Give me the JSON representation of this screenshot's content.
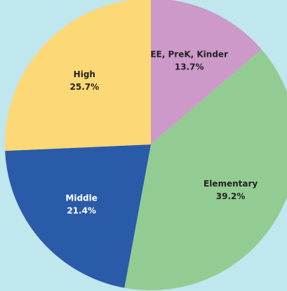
{
  "chart_data": {
    "type": "pie",
    "categories": [
      "EE, PreK, Kinder",
      "Elementary",
      "Middle",
      "High"
    ],
    "values": [
      13.7,
      39.2,
      21.4,
      25.7
    ],
    "value_labels": [
      "13.7%",
      "39.2%",
      "21.4%",
      "25.7%"
    ],
    "colors": [
      "#cc99c9",
      "#93cc93",
      "#2a5ba8",
      "#fdd876"
    ],
    "label_colors": [
      "#222222",
      "#222222",
      "#ffffff",
      "#222222"
    ],
    "background": "#c0e6ee"
  }
}
